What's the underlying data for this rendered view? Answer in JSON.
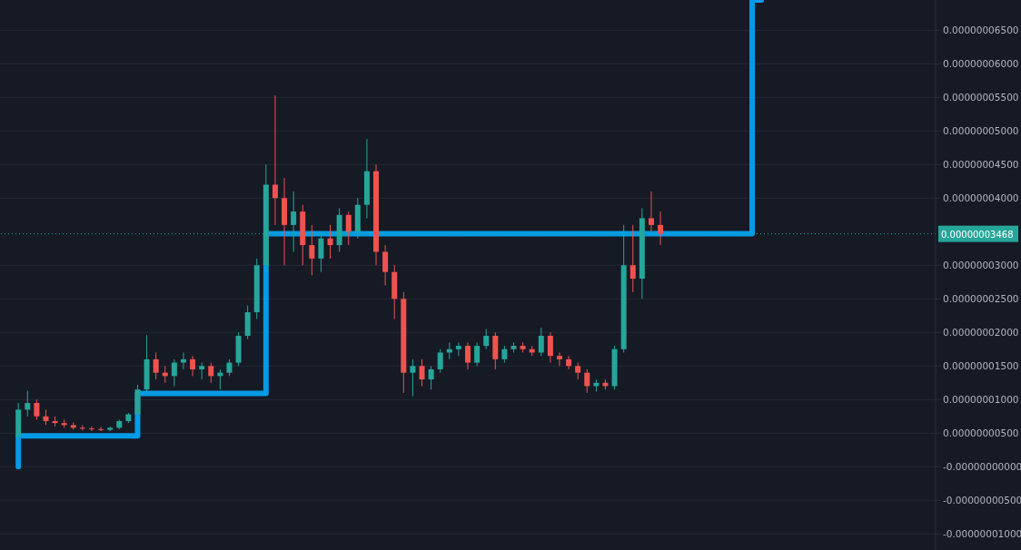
{
  "chart_data": {
    "type": "candlestick",
    "categories": [
      null,
      null,
      null,
      null,
      null,
      null,
      null,
      null,
      null,
      null,
      null,
      null,
      null,
      null,
      null,
      null,
      null,
      null,
      null,
      null,
      null,
      null,
      null,
      null,
      null,
      null,
      null,
      null,
      null,
      null,
      null,
      null,
      null,
      null,
      null,
      null,
      null,
      null,
      null,
      null,
      null,
      null,
      null,
      null,
      null,
      null,
      null,
      null,
      null,
      null,
      null,
      null,
      null,
      null,
      null,
      null,
      null,
      null,
      null,
      null,
      null,
      null,
      null,
      null,
      null,
      null,
      null,
      null,
      null,
      null,
      null,
      null,
      null,
      null,
      null,
      null,
      null,
      null,
      null,
      null,
      null,
      null,
      null,
      null,
      null,
      null,
      null,
      null,
      null,
      null,
      null,
      null,
      null,
      null,
      null,
      null,
      null,
      null,
      null,
      null,
      null,
      null,
      null
    ],
    "ohlc": [
      null,
      null,
      [
        4.5e-09,
        9.5e-09,
        4e-09,
        8.5e-09
      ],
      [
        8.5e-09,
        1.13e-08,
        7.5e-09,
        9.5e-09
      ],
      [
        9.5e-09,
        1e-08,
        7e-09,
        7.5e-09
      ],
      [
        7.5e-09,
        8.5e-09,
        6.2e-09,
        6.8e-09
      ],
      [
        6.8e-09,
        7.5e-09,
        6e-09,
        6.5e-09
      ],
      [
        6.5e-09,
        7e-09,
        5.8e-09,
        6.2e-09
      ],
      [
        6.2e-09,
        6.6e-09,
        5.5e-09,
        5.8e-09
      ],
      [
        5.8e-09,
        6.2e-09,
        5.4e-09,
        5.7e-09
      ],
      [
        5.7e-09,
        6e-09,
        5.3e-09,
        5.6e-09
      ],
      [
        5.6e-09,
        5.9e-09,
        5.3e-09,
        5.5e-09
      ],
      [
        5.5e-09,
        6e-09,
        5.3e-09,
        5.8e-09
      ],
      [
        5.8e-09,
        7e-09,
        5.6e-09,
        6.8e-09
      ],
      [
        6.8e-09,
        8e-09,
        6.5e-09,
        7.8e-09
      ],
      [
        7.8e-09,
        1.22e-08,
        7.5e-09,
        1.15e-08
      ],
      [
        1.15e-08,
        1.96e-08,
        1.1e-08,
        1.6e-08
      ],
      [
        1.6e-08,
        1.7e-08,
        1.3e-08,
        1.4e-08
      ],
      [
        1.4e-08,
        1.5e-08,
        1.25e-08,
        1.35e-08
      ],
      [
        1.35e-08,
        1.6e-08,
        1.2e-08,
        1.55e-08
      ],
      [
        1.55e-08,
        1.7e-08,
        1.45e-08,
        1.6e-08
      ],
      [
        1.6e-08,
        1.65e-08,
        1.35e-08,
        1.45e-08
      ],
      [
        1.45e-08,
        1.55e-08,
        1.3e-08,
        1.5e-08
      ],
      [
        1.5e-08,
        1.55e-08,
        1.25e-08,
        1.35e-08
      ],
      [
        1.35e-08,
        1.45e-08,
        1.15e-08,
        1.4e-08
      ],
      [
        1.4e-08,
        1.6e-08,
        1.35e-08,
        1.55e-08
      ],
      [
        1.55e-08,
        2e-08,
        1.5e-08,
        1.95e-08
      ],
      [
        1.95e-08,
        2.4e-08,
        1.9e-08,
        2.3e-08
      ],
      [
        2.3e-08,
        3.1e-08,
        2.2e-08,
        3e-08
      ],
      [
        3e-08,
        4.5e-08,
        2.9e-08,
        4.2e-08
      ],
      [
        4.2e-08,
        5.53e-08,
        3.6e-08,
        4e-08
      ],
      [
        4e-08,
        4.3e-08,
        3e-08,
        3.6e-08
      ],
      [
        3.6e-08,
        4.1e-08,
        3.2e-08,
        3.8e-08
      ],
      [
        3.8e-08,
        3.9e-08,
        3e-08,
        3.3e-08
      ],
      [
        3.3e-08,
        3.6e-08,
        2.85e-08,
        3.1e-08
      ],
      [
        3.1e-08,
        3.5e-08,
        2.9e-08,
        3.4e-08
      ],
      [
        3.4e-08,
        3.6e-08,
        3.1e-08,
        3.3e-08
      ],
      [
        3.3e-08,
        3.85e-08,
        3.2e-08,
        3.75e-08
      ],
      [
        3.75e-08,
        3.8e-08,
        3.3e-08,
        3.5e-08
      ],
      [
        3.5e-08,
        4e-08,
        3.4e-08,
        3.9e-08
      ],
      [
        3.9e-08,
        4.88e-08,
        3.7e-08,
        4.4e-08
      ],
      [
        4.4e-08,
        4.5e-08,
        3e-08,
        3.2e-08
      ],
      [
        3.2e-08,
        3.3e-08,
        2.7e-08,
        2.9e-08
      ],
      [
        2.9e-08,
        3e-08,
        2.2e-08,
        2.5e-08
      ],
      [
        2.5e-08,
        2.6e-08,
        1.1e-08,
        1.4e-08
      ],
      [
        1.4e-08,
        1.6e-08,
        1.05e-08,
        1.5e-08
      ],
      [
        1.5e-08,
        1.6e-08,
        1.2e-08,
        1.3e-08
      ],
      [
        1.3e-08,
        1.5e-08,
        1.15e-08,
        1.45e-08
      ],
      [
        1.45e-08,
        1.75e-08,
        1.4e-08,
        1.7e-08
      ],
      [
        1.7e-08,
        1.85e-08,
        1.6e-08,
        1.75e-08
      ],
      [
        1.75e-08,
        1.85e-08,
        1.65e-08,
        1.8e-08
      ],
      [
        1.8e-08,
        1.85e-08,
        1.45e-08,
        1.55e-08
      ],
      [
        1.55e-08,
        1.85e-08,
        1.5e-08,
        1.8e-08
      ],
      [
        1.8e-08,
        2.05e-08,
        1.75e-08,
        1.95e-08
      ],
      [
        1.95e-08,
        2e-08,
        1.45e-08,
        1.6e-08
      ],
      [
        1.6e-08,
        1.8e-08,
        1.55e-08,
        1.75e-08
      ],
      [
        1.75e-08,
        1.85e-08,
        1.7e-08,
        1.8e-08
      ],
      [
        1.8e-08,
        1.85e-08,
        1.7e-08,
        1.75e-08
      ],
      [
        1.75e-08,
        1.8e-08,
        1.65e-08,
        1.7e-08
      ],
      [
        1.7e-08,
        2.07e-08,
        1.65e-08,
        1.95e-08
      ],
      [
        1.95e-08,
        2e-08,
        1.55e-08,
        1.65e-08
      ],
      [
        1.65e-08,
        1.7e-08,
        1.5e-08,
        1.6e-08
      ],
      [
        1.6e-08,
        1.65e-08,
        1.45e-08,
        1.5e-08
      ],
      [
        1.5e-08,
        1.55e-08,
        1.3e-08,
        1.4e-08
      ],
      [
        1.4e-08,
        1.45e-08,
        1.1e-08,
        1.2e-08
      ],
      [
        1.2e-08,
        1.3e-08,
        1.12e-08,
        1.25e-08
      ],
      [
        1.25e-08,
        1.3e-08,
        1.15e-08,
        1.2e-08
      ],
      [
        1.2e-08,
        1.8e-08,
        1.15e-08,
        1.75e-08
      ],
      [
        1.75e-08,
        3.6e-08,
        1.7e-08,
        3e-08
      ],
      [
        3e-08,
        3.6e-08,
        2.6e-08,
        2.8e-08
      ],
      [
        2.8e-08,
        3.85e-08,
        2.5e-08,
        3.7e-08
      ],
      [
        3.7e-08,
        4.1e-08,
        3.5e-08,
        3.6e-08
      ],
      [
        3.6e-08,
        3.8e-08,
        3.3e-08,
        3.47e-08
      ],
      null,
      null,
      null,
      null,
      null,
      null,
      null,
      null,
      null,
      null,
      null,
      null,
      null,
      null,
      null,
      null,
      null,
      null,
      null,
      null,
      null,
      null,
      null,
      null,
      null,
      null,
      null,
      null,
      null,
      null
    ],
    "series": [
      {
        "type": "step",
        "color": "#039be5",
        "values": [
          null,
          null,
          0,
          4.6e-09,
          4.6e-09,
          4.6e-09,
          4.6e-09,
          4.6e-09,
          4.6e-09,
          4.6e-09,
          4.6e-09,
          4.6e-09,
          4.6e-09,
          4.6e-09,
          4.6e-09,
          4.6e-09,
          1.09e-08,
          1.09e-08,
          1.09e-08,
          1.09e-08,
          1.09e-08,
          1.09e-08,
          1.09e-08,
          1.09e-08,
          1.09e-08,
          1.09e-08,
          1.09e-08,
          1.09e-08,
          1.09e-08,
          1.09e-08,
          3.47e-08,
          3.47e-08,
          3.47e-08,
          3.47e-08,
          3.47e-08,
          3.47e-08,
          3.47e-08,
          3.47e-08,
          3.47e-08,
          3.47e-08,
          3.47e-08,
          3.47e-08,
          3.47e-08,
          3.47e-08,
          3.47e-08,
          3.47e-08,
          3.47e-08,
          3.47e-08,
          3.47e-08,
          3.47e-08,
          3.47e-08,
          3.47e-08,
          3.47e-08,
          3.47e-08,
          3.47e-08,
          3.47e-08,
          3.47e-08,
          3.47e-08,
          3.47e-08,
          3.47e-08,
          3.47e-08,
          3.47e-08,
          3.47e-08,
          3.47e-08,
          3.47e-08,
          3.47e-08,
          3.47e-08,
          3.47e-08,
          3.47e-08,
          3.47e-08,
          3.47e-08,
          3.47e-08,
          3.47e-08,
          3.47e-08,
          3.47e-08,
          3.47e-08,
          3.47e-08,
          3.47e-08,
          3.47e-08,
          3.47e-08,
          3.47e-08,
          3.47e-08,
          3.47e-08,
          6.95e-08,
          null,
          null,
          null,
          null,
          null,
          null,
          null,
          null,
          null,
          null,
          null,
          null,
          null,
          null,
          null,
          null,
          null,
          null,
          null
        ]
      }
    ],
    "ylim": [
      -1.24e-08,
      6.95e-08
    ],
    "yticks": [
      {
        "value": -1e-08,
        "label": "-0.00000001000"
      },
      {
        "value": -5e-09,
        "label": "-0.00000000500"
      },
      {
        "value": 0,
        "label": "-0.00000000000"
      },
      {
        "value": 5e-09,
        "label": "0.00000000500"
      },
      {
        "value": 1e-08,
        "label": "0.00000001000"
      },
      {
        "value": 1.5e-08,
        "label": "0.00000001500"
      },
      {
        "value": 2e-08,
        "label": "0.00000002000"
      },
      {
        "value": 2.5e-08,
        "label": "0.00000002500"
      },
      {
        "value": 3e-08,
        "label": "0.00000003000"
      },
      {
        "value": 4e-08,
        "label": "0.00000004000"
      },
      {
        "value": 4.5e-08,
        "label": "0.00000004500"
      },
      {
        "value": 5e-08,
        "label": "0.00000005000"
      },
      {
        "value": 5.5e-08,
        "label": "0.00000005500"
      },
      {
        "value": 6e-08,
        "label": "0.00000006000"
      },
      {
        "value": 6.5e-08,
        "label": "0.00000006500"
      }
    ],
    "ref_lines": [
      {
        "axis": "y",
        "value": 3.468e-08,
        "label": "0.00000003468",
        "color": "#26a69a",
        "line_style": "dotted"
      }
    ],
    "grid": "y",
    "tick_labels": "y",
    "line_style": "solid"
  }
}
